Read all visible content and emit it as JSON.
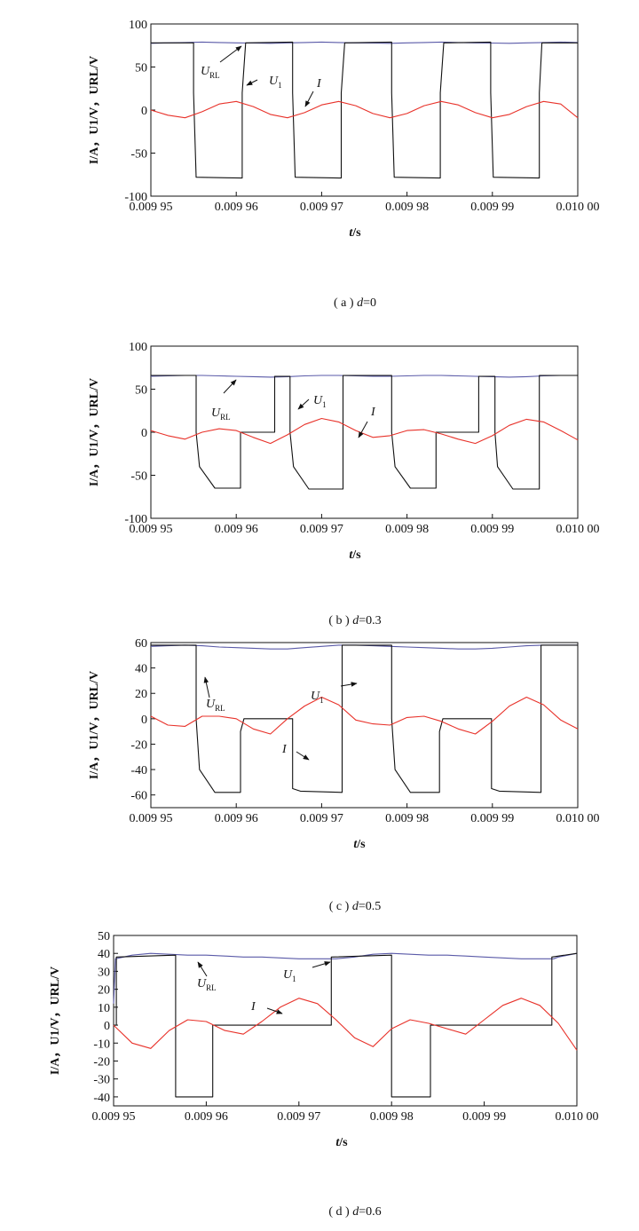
{
  "chart_data": [
    {
      "type": "line",
      "panel": "a",
      "caption": {
        "prefix": "( a ) ",
        "var": "d",
        "value": "=0"
      },
      "xlabel": {
        "var": "t",
        "unit": "/s"
      },
      "ylabel": "I/A，U1/V，URL/V",
      "x_ticks": [
        "0.009 95",
        "0.009 96",
        "0.009 97",
        "0.009 98",
        "0.009 99",
        "0.010 00"
      ],
      "x_tick_values": [
        0.00995,
        0.00996,
        0.00997,
        0.00998,
        0.00999,
        0.01
      ],
      "xlim": [
        0.00995,
        0.01
      ],
      "y_ticks": [
        -100,
        -50,
        0,
        50,
        100
      ],
      "ylim": [
        -100,
        100
      ],
      "series": [
        {
          "name": "U_RL",
          "color": "#5a5aa8",
          "x": [
            0.00995,
            0.009952,
            0.009954,
            0.009956,
            0.009958,
            0.00996,
            0.009962,
            0.009964,
            0.009966,
            0.009968,
            0.00997,
            0.009972,
            0.009974,
            0.009976,
            0.009978,
            0.00998,
            0.009982,
            0.009984,
            0.009986,
            0.009988,
            0.00999,
            0.009992,
            0.009994,
            0.009996,
            0.009998,
            0.01
          ],
          "y": [
            77.5,
            78,
            78.5,
            79,
            78.5,
            78,
            77.8,
            77.5,
            78,
            78.5,
            79,
            78.5,
            78,
            77.8,
            77.5,
            78,
            78.5,
            79,
            78.5,
            78,
            77.8,
            77.5,
            78,
            78.5,
            79,
            78.5
          ]
        },
        {
          "name": "U_1",
          "color": "#111111",
          "x": [
            0.00995,
            0.009955,
            0.009955,
            0.0099553,
            0.0099607,
            0.0099607,
            0.0099611,
            0.0099666,
            0.0099666,
            0.0099669,
            0.0099723,
            0.0099723,
            0.0099727,
            0.0099782,
            0.0099782,
            0.0099785,
            0.0099839,
            0.0099839,
            0.0099843,
            0.0099898,
            0.0099898,
            0.0099901,
            0.0099955,
            0.0099955,
            0.0099958,
            0.01
          ],
          "y": [
            78,
            78,
            20,
            -78,
            -79,
            20,
            78,
            79,
            20,
            -78,
            -79,
            20,
            78,
            79,
            20,
            -78,
            -79,
            20,
            78,
            79,
            20,
            -78,
            -79,
            20,
            78,
            78
          ]
        },
        {
          "name": "I",
          "color": "#e8322a",
          "x": [
            0.00995,
            0.009952,
            0.009954,
            0.009956,
            0.009958,
            0.00996,
            0.009962,
            0.009964,
            0.009966,
            0.009968,
            0.00997,
            0.009972,
            0.009974,
            0.009976,
            0.009978,
            0.00998,
            0.009982,
            0.009984,
            0.009986,
            0.009988,
            0.00999,
            0.009992,
            0.009994,
            0.009996,
            0.009998,
            0.01
          ],
          "y": [
            0,
            -6,
            -9,
            -2,
            7,
            10,
            4,
            -5,
            -9,
            -3,
            6,
            10,
            5,
            -4,
            -9,
            -4,
            5,
            10,
            6,
            -3,
            -9,
            -5,
            4,
            10,
            7,
            -9
          ]
        }
      ],
      "annotations": [
        {
          "var": "U",
          "sub": "RL"
        },
        {
          "var": "U",
          "sub": "1"
        },
        {
          "var": "I",
          "sub": ""
        }
      ]
    },
    {
      "type": "line",
      "panel": "b",
      "caption": {
        "prefix": "( b ) ",
        "var": "d",
        "value": "=0.3"
      },
      "xlabel": {
        "var": "t",
        "unit": "/s"
      },
      "ylabel": "I/A，U1/V，URL/V",
      "x_ticks": [
        "0.009 95",
        "0.009 96",
        "0.009 97",
        "0.009 98",
        "0.009 99",
        "0.010 00"
      ],
      "x_tick_values": [
        0.00995,
        0.00996,
        0.00997,
        0.00998,
        0.00999,
        0.01
      ],
      "xlim": [
        0.00995,
        0.01
      ],
      "y_ticks": [
        -100,
        -50,
        0,
        50,
        100
      ],
      "ylim": [
        -100,
        100
      ],
      "series": [
        {
          "name": "U_RL",
          "color": "#5a5aa8",
          "x": [
            0.00995,
            0.009952,
            0.009954,
            0.009956,
            0.009958,
            0.00996,
            0.009962,
            0.009964,
            0.009966,
            0.009968,
            0.00997,
            0.009972,
            0.009974,
            0.009976,
            0.009978,
            0.00998,
            0.009982,
            0.009984,
            0.009986,
            0.009988,
            0.00999,
            0.009992,
            0.009994,
            0.009996,
            0.009998,
            0.01
          ],
          "y": [
            65,
            65.5,
            66,
            66,
            65.5,
            65,
            64.5,
            64,
            64.5,
            65.5,
            66,
            66,
            65.5,
            65,
            65,
            65.5,
            66,
            66,
            65.5,
            65,
            64.5,
            64,
            64.5,
            65.5,
            66,
            66
          ]
        },
        {
          "name": "U_1",
          "color": "#111111",
          "x": [
            0.00995,
            0.0099553,
            0.0099553,
            0.0099557,
            0.0099575,
            0.0099605,
            0.0099605,
            0.0099645,
            0.0099645,
            0.0099663,
            0.0099663,
            0.0099667,
            0.0099685,
            0.0099725,
            0.0099725,
            0.0099782,
            0.0099782,
            0.0099786,
            0.0099804,
            0.0099834,
            0.0099834,
            0.0099884,
            0.0099884,
            0.0099903,
            0.0099903,
            0.0099906,
            0.0099924,
            0.0099955,
            0.0099955,
            0.01
          ],
          "y": [
            66,
            66,
            0,
            -40,
            -65,
            -65,
            0,
            0,
            65,
            65,
            0,
            -40,
            -66,
            -66,
            66,
            66,
            0,
            -40,
            -65,
            -65,
            0,
            0,
            65,
            65,
            0,
            -40,
            -66,
            -66,
            66,
            66
          ]
        },
        {
          "name": "I",
          "color": "#e8322a",
          "x": [
            0.00995,
            0.009952,
            0.009954,
            0.009956,
            0.009958,
            0.00996,
            0.009962,
            0.009964,
            0.009966,
            0.009968,
            0.00997,
            0.009972,
            0.009974,
            0.009976,
            0.009978,
            0.00998,
            0.009982,
            0.009984,
            0.009986,
            0.009988,
            0.00999,
            0.009992,
            0.009994,
            0.009996,
            0.009998,
            0.01
          ],
          "y": [
            2,
            -4,
            -8,
            0,
            4,
            2,
            -6,
            -13,
            -3,
            9,
            16,
            12,
            2,
            -6,
            -4,
            2,
            3,
            -2,
            -8,
            -13,
            -4,
            8,
            15,
            12,
            2,
            -9
          ]
        }
      ],
      "annotations": [
        {
          "var": "U",
          "sub": "RL"
        },
        {
          "var": "U",
          "sub": "1"
        },
        {
          "var": "I",
          "sub": ""
        }
      ]
    },
    {
      "type": "line",
      "panel": "c",
      "caption": {
        "prefix": "( c ) ",
        "var": "d",
        "value": "=0.5"
      },
      "xlabel": {
        "var": "t",
        "unit": "/s"
      },
      "ylabel": "I/A，U1/V，URL/V",
      "x_ticks": [
        "0.009 95",
        "0.009 96",
        "0.009 97",
        "0.009 98",
        "0.009 99",
        "0.010 00"
      ],
      "x_tick_values": [
        0.00995,
        0.00996,
        0.00997,
        0.00998,
        0.00999,
        0.01
      ],
      "xlim": [
        0.00995,
        0.01
      ],
      "y_ticks": [
        -60,
        -40,
        -20,
        0,
        20,
        40,
        60
      ],
      "ylim": [
        -70,
        60
      ],
      "series": [
        {
          "name": "U_RL",
          "color": "#5a5aa8",
          "x": [
            0.00995,
            0.009952,
            0.009954,
            0.009956,
            0.009958,
            0.00996,
            0.009962,
            0.009964,
            0.009966,
            0.009968,
            0.00997,
            0.009972,
            0.009974,
            0.009976,
            0.009978,
            0.00998,
            0.009982,
            0.009984,
            0.009986,
            0.009988,
            0.00999,
            0.009992,
            0.009994,
            0.009996,
            0.009998,
            0.01
          ],
          "y": [
            57,
            57.5,
            58,
            57.5,
            56.5,
            56,
            55.5,
            55,
            55,
            56,
            57,
            58,
            58,
            57.5,
            57,
            56.5,
            56,
            55.5,
            55,
            55,
            55.5,
            56.5,
            57.5,
            58,
            58,
            58
          ]
        },
        {
          "name": "U_1",
          "color": "#111111",
          "x": [
            0.00995,
            0.0099553,
            0.0099553,
            0.0099557,
            0.0099575,
            0.0099605,
            0.0099605,
            0.0099609,
            0.0099666,
            0.0099666,
            0.0099675,
            0.0099724,
            0.0099724,
            0.0099782,
            0.0099782,
            0.0099786,
            0.0099804,
            0.0099838,
            0.0099838,
            0.0099842,
            0.0099899,
            0.0099899,
            0.0099908,
            0.0099957,
            0.0099957,
            0.01
          ],
          "y": [
            58,
            58,
            0,
            -40,
            -58,
            -58,
            -10,
            0,
            0,
            -55,
            -57,
            -58,
            58,
            58,
            0,
            -40,
            -58,
            -58,
            -10,
            0,
            0,
            -55,
            -57,
            -58,
            58,
            58
          ]
        },
        {
          "name": "I",
          "color": "#e8322a",
          "x": [
            0.00995,
            0.009952,
            0.009954,
            0.009956,
            0.009958,
            0.00996,
            0.009962,
            0.009964,
            0.009966,
            0.009968,
            0.00997,
            0.009972,
            0.009974,
            0.009976,
            0.009978,
            0.00998,
            0.009982,
            0.009984,
            0.009986,
            0.009988,
            0.00999,
            0.009992,
            0.009994,
            0.009996,
            0.009998,
            0.01
          ],
          "y": [
            2,
            -5,
            -6,
            2,
            2,
            0,
            -8,
            -12,
            0,
            10,
            17,
            11,
            -1,
            -4,
            -5,
            1,
            2,
            -2,
            -8,
            -12,
            -2,
            10,
            17,
            11,
            -1,
            -8
          ]
        }
      ],
      "annotations": [
        {
          "var": "U",
          "sub": "RL"
        },
        {
          "var": "U",
          "sub": "1"
        },
        {
          "var": "I",
          "sub": ""
        }
      ]
    },
    {
      "type": "line",
      "panel": "d",
      "caption": {
        "prefix": "( d ) ",
        "var": "d",
        "value": "=0.6"
      },
      "xlabel": {
        "var": "t",
        "unit": "/s"
      },
      "ylabel": "I/A，U1/V，URL/V",
      "x_ticks": [
        "0.009 95",
        "0.009 96",
        "0.009 97",
        "0.009 98",
        "0.009 99",
        "0.010 00"
      ],
      "x_tick_values": [
        0.00995,
        0.00996,
        0.00997,
        0.00998,
        0.00999,
        0.01
      ],
      "xlim": [
        0.00995,
        0.01
      ],
      "y_ticks": [
        -40,
        -30,
        -20,
        -10,
        0,
        10,
        20,
        30,
        40,
        50
      ],
      "ylim": [
        -45,
        50
      ],
      "series": [
        {
          "name": "U_RL",
          "color": "#5a5aa8",
          "x": [
            0.00995,
            0.0099502,
            0.009952,
            0.009954,
            0.009956,
            0.009958,
            0.00996,
            0.009962,
            0.009964,
            0.009966,
            0.009968,
            0.00997,
            0.009972,
            0.009974,
            0.009976,
            0.009978,
            0.00998,
            0.009982,
            0.009984,
            0.009986,
            0.009988,
            0.00999,
            0.009992,
            0.009994,
            0.009996,
            0.0099975,
            0.009998,
            0.01
          ],
          "y": [
            12,
            37,
            39,
            40,
            39.5,
            39,
            39,
            38.5,
            38,
            38,
            37.5,
            37,
            37,
            37,
            38,
            39.5,
            40,
            39.5,
            39,
            39,
            38.5,
            38,
            37.5,
            37,
            37,
            37,
            38,
            40
          ]
        },
        {
          "name": "U_1",
          "color": "#111111",
          "x": [
            0.00995,
            0.0099503,
            0.0099503,
            0.0099567,
            0.0099567,
            0.0099607,
            0.0099607,
            0.0099735,
            0.0099735,
            0.00998,
            0.00998,
            0.0099842,
            0.0099842,
            0.0099973,
            0.0099973,
            0.01
          ],
          "y": [
            0,
            0,
            38,
            39,
            -40,
            -40,
            0,
            0,
            38,
            39,
            -40,
            -40,
            0,
            0,
            38,
            40
          ]
        },
        {
          "name": "I",
          "color": "#e8322a",
          "x": [
            0.00995,
            0.009952,
            0.009954,
            0.009956,
            0.009958,
            0.00996,
            0.009962,
            0.009964,
            0.009966,
            0.009968,
            0.00997,
            0.009972,
            0.009974,
            0.009976,
            0.009978,
            0.00998,
            0.009982,
            0.009984,
            0.009986,
            0.009988,
            0.00999,
            0.009992,
            0.009994,
            0.009996,
            0.009998,
            0.01
          ],
          "y": [
            0,
            -10,
            -13,
            -3,
            3,
            2,
            -3,
            -5,
            2,
            10,
            15,
            12,
            3,
            -7,
            -12,
            -2,
            3,
            1,
            -2,
            -5,
            3,
            11,
            15,
            11,
            1,
            -14
          ]
        }
      ],
      "annotations": [
        {
          "var": "U",
          "sub": "RL"
        },
        {
          "var": "U",
          "sub": "1"
        },
        {
          "var": "I",
          "sub": ""
        }
      ]
    }
  ]
}
